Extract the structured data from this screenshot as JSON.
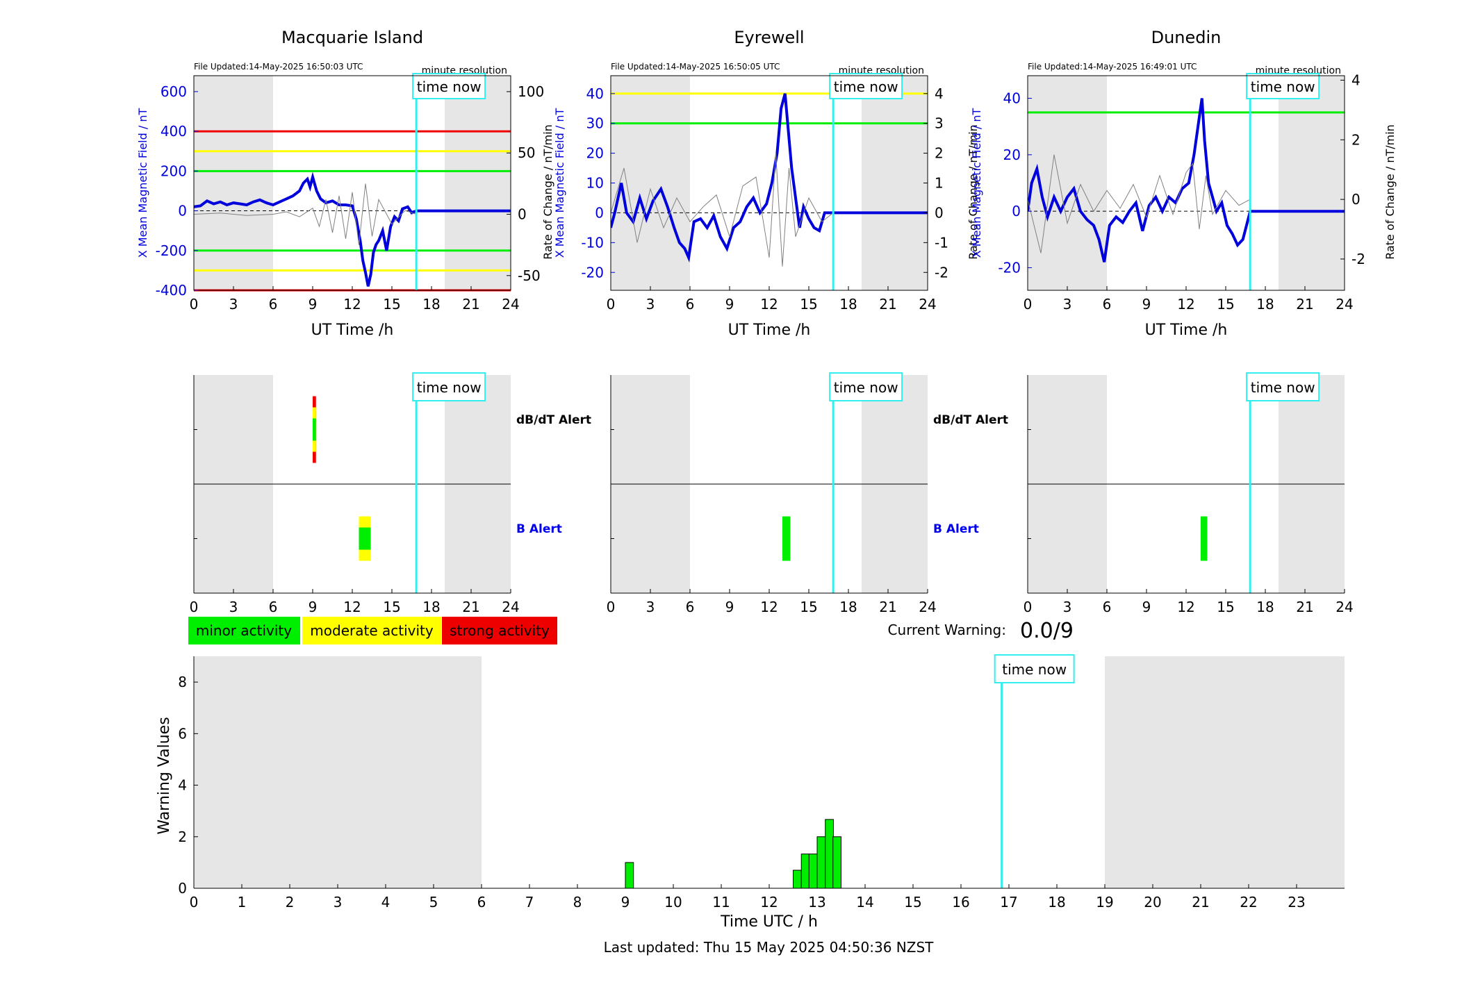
{
  "chart_data": [
    {
      "type": "line",
      "panel": "magnetometer",
      "title": "Macquarie Island",
      "file_updated": "File Updated:14-May-2025 16:50:03 UTC",
      "resolution_label": "minute resolution",
      "time_now_label": "time now",
      "xlabel": "UT Time /h",
      "ylabel_left": "X Mean Magnetic Field / nT",
      "ylabel_right": "",
      "xlim": [
        0,
        24
      ],
      "xticks": [
        0,
        3,
        6,
        9,
        12,
        15,
        18,
        21,
        24
      ],
      "ylim_left": [
        -400,
        680
      ],
      "yticks_left": [
        -400,
        -200,
        0,
        200,
        400,
        600
      ],
      "ylim_right": [
        -62,
        113
      ],
      "yticks_right": [
        -50,
        0,
        50,
        100
      ],
      "night_bands": [
        [
          0,
          6
        ],
        [
          19,
          24
        ]
      ],
      "time_now": 16.85,
      "thresholds": [
        {
          "level": "minor",
          "color": "#00ee00",
          "values": [
            200,
            -200
          ]
        },
        {
          "level": "moderate",
          "color": "#ffff00",
          "values": [
            300,
            -300
          ]
        },
        {
          "level": "strong",
          "color": "#ee0000",
          "values": [
            400,
            -400
          ]
        }
      ],
      "series": [
        {
          "axis": "left",
          "color": "#0000dd",
          "x": [
            0,
            0.5,
            1,
            1.5,
            2,
            2.5,
            3,
            3.5,
            4,
            4.5,
            5,
            5.5,
            6,
            6.5,
            7,
            7.5,
            8,
            8.3,
            8.6,
            8.8,
            9.0,
            9.3,
            9.6,
            10,
            10.5,
            11,
            11.5,
            12,
            12.3,
            12.6,
            12.8,
            13.0,
            13.2,
            13.4,
            13.6,
            13.8,
            14.0,
            14.3,
            14.6,
            14.9,
            15.2,
            15.5,
            15.8,
            16.2,
            16.5,
            16.85,
            17,
            18,
            20,
            22,
            24
          ],
          "y": [
            20,
            25,
            50,
            35,
            45,
            30,
            40,
            35,
            30,
            45,
            55,
            40,
            30,
            45,
            60,
            75,
            100,
            140,
            160,
            120,
            170,
            100,
            60,
            40,
            50,
            30,
            30,
            25,
            -40,
            -150,
            -250,
            -310,
            -380,
            -320,
            -210,
            -170,
            -150,
            -100,
            -200,
            -80,
            -30,
            -50,
            10,
            20,
            -10,
            0,
            0,
            0,
            0,
            0,
            0
          ]
        },
        {
          "axis": "right",
          "color": "#808080",
          "x": [
            0,
            2,
            4,
            6,
            7,
            8,
            9,
            9.5,
            10,
            10.5,
            11,
            11.5,
            12,
            12.5,
            13,
            13.5,
            14,
            15,
            16,
            16.85
          ],
          "y": [
            0,
            1,
            -1,
            0,
            2,
            -2,
            5,
            -10,
            12,
            -15,
            15,
            -20,
            18,
            -25,
            25,
            -18,
            12,
            -8,
            3,
            0
          ]
        }
      ]
    },
    {
      "type": "line",
      "panel": "magnetometer",
      "title": "Eyrewell",
      "file_updated": "File Updated:14-May-2025 16:50:05 UTC",
      "resolution_label": "minute resolution",
      "time_now_label": "time now",
      "xlabel": "UT Time /h",
      "ylabel_left": "X Mean Magnetic Field / nT",
      "ylabel_right": "Rate of Change / nT/min",
      "ylabel_right_prev": "Rate of Change / nT/min",
      "xlim": [
        0,
        24
      ],
      "xticks": [
        0,
        3,
        6,
        9,
        12,
        15,
        18,
        21,
        24
      ],
      "ylim_left": [
        -26,
        46
      ],
      "yticks_left": [
        -20,
        -10,
        0,
        10,
        20,
        30,
        40
      ],
      "ylim_right": [
        -2.6,
        4.6
      ],
      "yticks_right": [
        -2,
        -1,
        0,
        1,
        2,
        3,
        4
      ],
      "night_bands": [
        [
          0,
          6
        ],
        [
          19,
          24
        ]
      ],
      "time_now": 16.85,
      "thresholds": [
        {
          "level": "minor",
          "color": "#00ee00",
          "values": [
            30
          ]
        },
        {
          "level": "moderate",
          "color": "#ffff00",
          "values": [
            40
          ]
        }
      ],
      "series": [
        {
          "axis": "left",
          "color": "#0000dd",
          "x": [
            0,
            0.3,
            0.8,
            1.2,
            1.7,
            2.2,
            2.7,
            3.2,
            3.8,
            4.3,
            4.8,
            5.2,
            5.6,
            5.9,
            6.3,
            6.8,
            7.3,
            7.8,
            8.3,
            8.8,
            9.3,
            9.8,
            10.3,
            10.8,
            11.3,
            11.8,
            12.2,
            12.6,
            12.9,
            13.2,
            13.4,
            13.7,
            14.0,
            14.3,
            14.6,
            15.0,
            15.4,
            15.8,
            16.2,
            16.85,
            17,
            20,
            24
          ],
          "y": [
            -5,
            0,
            10,
            0,
            -3,
            5,
            -2,
            4,
            8,
            2,
            -5,
            -10,
            -12,
            -15,
            -3,
            -2,
            -5,
            -1,
            -8,
            -12,
            -5,
            -3,
            2,
            5,
            0,
            3,
            10,
            20,
            35,
            40,
            30,
            15,
            5,
            -5,
            2,
            -2,
            -5,
            -6,
            0,
            0,
            0,
            0,
            0
          ]
        },
        {
          "axis": "right",
          "color": "#808080",
          "x": [
            0,
            1,
            2,
            3,
            4,
            5,
            6,
            7,
            8,
            9,
            10,
            11,
            12,
            12.5,
            13,
            13.5,
            14,
            15,
            16,
            16.85
          ],
          "y": [
            0,
            1.5,
            -1,
            0.8,
            -0.5,
            0.5,
            -0.3,
            0.2,
            0.6,
            -0.8,
            0.9,
            1.2,
            -1.5,
            2.0,
            -1.8,
            1.5,
            -0.8,
            0.5,
            -0.3,
            0
          ]
        }
      ]
    },
    {
      "type": "line",
      "panel": "magnetometer",
      "title": "Dunedin",
      "file_updated": "File Updated:14-May-2025 16:49:01 UTC",
      "resolution_label": "minute resolution",
      "time_now_label": "time now",
      "xlabel": "UT Time /h",
      "ylabel_left": "X Mean Magnetic Field / nT",
      "ylabel_right": "Rate of Change / nT/min",
      "xlim": [
        0,
        24
      ],
      "xticks": [
        0,
        3,
        6,
        9,
        12,
        15,
        18,
        21,
        24
      ],
      "ylim_left": [
        -28,
        48
      ],
      "yticks_left": [
        -20,
        0,
        20,
        40
      ],
      "ylim_right": [
        -3.05,
        4.15
      ],
      "yticks_right": [
        -2,
        0,
        2,
        4
      ],
      "night_bands": [
        [
          0,
          6
        ],
        [
          19,
          24
        ]
      ],
      "time_now": 16.85,
      "thresholds": [
        {
          "level": "minor",
          "color": "#00ee00",
          "values": [
            35
          ]
        }
      ],
      "series": [
        {
          "axis": "left",
          "color": "#0000dd",
          "x": [
            0,
            0.3,
            0.7,
            1.1,
            1.5,
            2.0,
            2.5,
            3.0,
            3.5,
            4.0,
            4.5,
            5.0,
            5.4,
            5.8,
            6.2,
            6.7,
            7.2,
            7.7,
            8.2,
            8.7,
            9.2,
            9.7,
            10.2,
            10.7,
            11.2,
            11.7,
            12.2,
            12.6,
            12.9,
            13.2,
            13.4,
            13.7,
            14.0,
            14.3,
            14.7,
            15.1,
            15.5,
            15.9,
            16.3,
            16.85,
            17,
            20,
            24
          ],
          "y": [
            0,
            10,
            15,
            5,
            -2,
            5,
            0,
            5,
            8,
            0,
            -3,
            -5,
            -10,
            -18,
            -5,
            -2,
            -4,
            0,
            3,
            -7,
            2,
            5,
            0,
            5,
            3,
            8,
            10,
            20,
            30,
            40,
            25,
            10,
            5,
            0,
            3,
            -5,
            -8,
            -12,
            -10,
            0,
            0,
            0,
            0
          ]
        },
        {
          "axis": "right",
          "color": "#808080",
          "x": [
            0,
            1,
            2,
            3,
            4,
            5,
            6,
            7,
            8,
            9,
            10,
            11,
            12,
            12.5,
            13,
            13.5,
            14,
            15,
            16,
            16.85
          ],
          "y": [
            0,
            -1.8,
            1.5,
            -0.8,
            0.5,
            -0.4,
            0.3,
            -0.3,
            0.5,
            -0.6,
            0.8,
            -0.5,
            0.9,
            1.2,
            -1.0,
            0.8,
            -0.5,
            0.3,
            -0.2,
            0
          ]
        }
      ]
    },
    {
      "type": "heatmap",
      "panel": "alerts",
      "station": "Macquarie Island",
      "row_labels": [
        "dB/dT Alert",
        "B Alert"
      ],
      "xlim": [
        0,
        24
      ],
      "xticks": [
        0,
        3,
        6,
        9,
        12,
        15,
        18,
        21,
        24
      ],
      "night_bands": [
        [
          0,
          6
        ],
        [
          19,
          24
        ]
      ],
      "time_now": 16.85,
      "time_now_label": "time now",
      "blocks": [
        {
          "row": 0,
          "x": [
            9.0,
            9.25
          ],
          "layers": [
            "#ee0000",
            "#ffff00",
            "#00ee00"
          ]
        },
        {
          "row": 1,
          "x": [
            12.5,
            13.4
          ],
          "layers": [
            "#ffff00",
            "#00ee00"
          ]
        }
      ]
    },
    {
      "type": "heatmap",
      "panel": "alerts",
      "station": "Eyrewell",
      "row_labels": [
        "dB/dT Alert",
        "B Alert"
      ],
      "xlim": [
        0,
        24
      ],
      "xticks": [
        0,
        3,
        6,
        9,
        12,
        15,
        18,
        21,
        24
      ],
      "night_bands": [
        [
          0,
          6
        ],
        [
          19,
          24
        ]
      ],
      "time_now": 16.85,
      "time_now_label": "time now",
      "blocks": [
        {
          "row": 1,
          "x": [
            13.0,
            13.6
          ],
          "layers": [
            "#00ee00"
          ]
        }
      ]
    },
    {
      "type": "heatmap",
      "panel": "alerts",
      "station": "Dunedin",
      "row_labels": [],
      "xlim": [
        0,
        24
      ],
      "xticks": [
        0,
        3,
        6,
        9,
        12,
        15,
        18,
        21,
        24
      ],
      "night_bands": [
        [
          0,
          6
        ],
        [
          19,
          24
        ]
      ],
      "time_now": 16.85,
      "time_now_label": "time now",
      "blocks": [
        {
          "row": 1,
          "x": [
            13.1,
            13.6
          ],
          "layers": [
            "#00ee00"
          ]
        }
      ]
    },
    {
      "type": "bar",
      "panel": "warning",
      "xlabel": "Time UTC / h",
      "ylabel": "Warning Values",
      "xlim": [
        0,
        24
      ],
      "xticks": [
        0,
        1,
        2,
        3,
        4,
        5,
        6,
        7,
        8,
        9,
        10,
        11,
        12,
        13,
        14,
        15,
        16,
        17,
        18,
        19,
        20,
        21,
        22,
        23
      ],
      "ylim": [
        0,
        9
      ],
      "yticks": [
        0,
        2,
        4,
        6,
        8
      ],
      "night_bands": [
        [
          0,
          6
        ],
        [
          19,
          24
        ]
      ],
      "time_now": 16.85,
      "time_now_label": "time now",
      "bar_color": "#00ee00",
      "bar_width": 0.17,
      "x": [
        9.0,
        12.5,
        12.67,
        12.83,
        13.0,
        13.17,
        13.33
      ],
      "values": [
        1.0,
        0.7,
        1.33,
        1.33,
        2.0,
        2.67,
        2.0
      ]
    }
  ],
  "legend": [
    {
      "label": "minor activity",
      "color": "#00ee00"
    },
    {
      "label": "moderate activity",
      "color": "#ffff00"
    },
    {
      "label": "strong activity",
      "color": "#ee0000"
    }
  ],
  "current_warning": {
    "label": "Current Warning:",
    "value": "0.0/9"
  },
  "footer": {
    "last_updated": "Last updated: Thu 15 May 2025 04:50:36 NZST"
  }
}
